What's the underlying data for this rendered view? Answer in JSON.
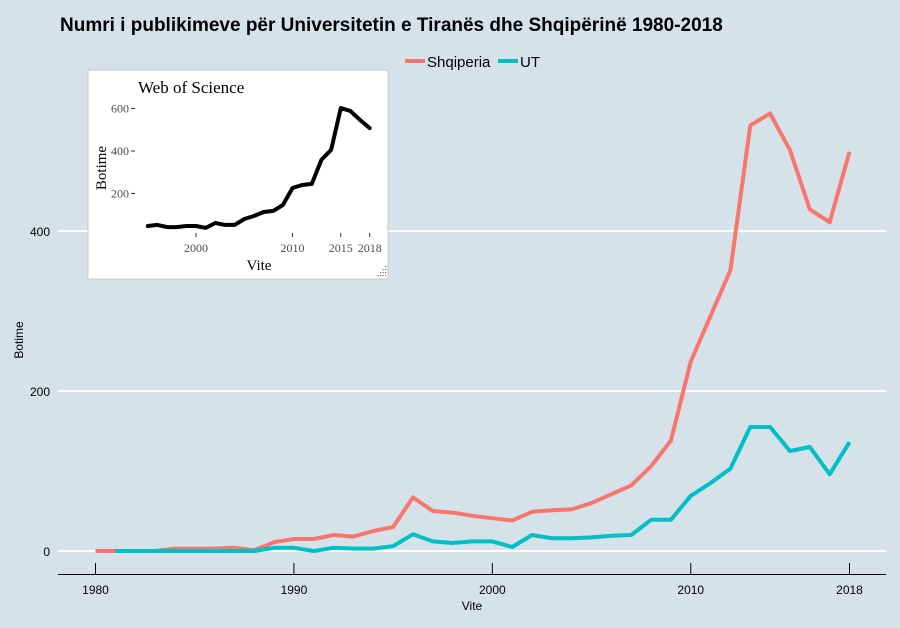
{
  "chart_data": [
    {
      "type": "line",
      "title": "Numri i publikimeve për Universitetin e Tiranës dhe Shqipërinë 1980-2018",
      "xlabel": "Vite",
      "ylabel": "Botime",
      "xlim": [
        1980,
        2018
      ],
      "ylim": [
        0,
        560
      ],
      "x_ticks": [
        1980,
        1990,
        2000,
        2010,
        2018
      ],
      "y_ticks": [
        0,
        200,
        400
      ],
      "grid": "horizontal",
      "legend": {
        "position": "top",
        "entries": [
          "Shqiperia",
          "UT"
        ]
      },
      "series": [
        {
          "name": "Shqiperia",
          "color": "#f8766d",
          "x": [
            1980,
            1981,
            1982,
            1983,
            1984,
            1985,
            1986,
            1987,
            1988,
            1989,
            1990,
            1991,
            1992,
            1993,
            1994,
            1995,
            1996,
            1997,
            1998,
            1999,
            2000,
            2001,
            2002,
            2003,
            2004,
            2005,
            2006,
            2007,
            2008,
            2009,
            2010,
            2011,
            2012,
            2013,
            2014,
            2015,
            2016,
            2017,
            2018
          ],
          "values": [
            0,
            0,
            0,
            0,
            3,
            3,
            3,
            4,
            1,
            11,
            15,
            15,
            20,
            18,
            25,
            30,
            67,
            50,
            48,
            44,
            41,
            38,
            49,
            51,
            52,
            60,
            71,
            82,
            106,
            138,
            237,
            294,
            351,
            532,
            547,
            501,
            427,
            411,
            499
          ]
        },
        {
          "name": "UT",
          "color": "#00bfc4",
          "x": [
            1981,
            1982,
            1983,
            1984,
            1985,
            1986,
            1987,
            1988,
            1989,
            1990,
            1991,
            1992,
            1993,
            1994,
            1995,
            1996,
            1997,
            1998,
            1999,
            2000,
            2001,
            2002,
            2003,
            2004,
            2005,
            2006,
            2007,
            2008,
            2009,
            2010,
            2011,
            2012,
            2013,
            2014,
            2015,
            2016,
            2017,
            2018
          ],
          "values": [
            0,
            0,
            0,
            0,
            0,
            0,
            0,
            0,
            4,
            4,
            0,
            4,
            3,
            3,
            6,
            21,
            12,
            10,
            12,
            12,
            5,
            20,
            16,
            16,
            17,
            19,
            20,
            39,
            39,
            69,
            85,
            103,
            155,
            155,
            125,
            130,
            96,
            136
          ]
        }
      ]
    },
    {
      "type": "line",
      "title": "Web of Science",
      "xlabel": "Vite",
      "ylabel": "Botime",
      "xlim": [
        1995,
        2018
      ],
      "ylim": [
        0,
        620
      ],
      "x_ticks": [
        2000,
        2010,
        2015,
        2018
      ],
      "y_ticks": [
        200,
        400,
        600
      ],
      "grid": "none",
      "series": [
        {
          "name": "Web of Science",
          "color": "#000000",
          "x": [
            1995,
            1996,
            1997,
            1998,
            1999,
            2000,
            2001,
            2002,
            2003,
            2004,
            2005,
            2006,
            2007,
            2008,
            2009,
            2010,
            2011,
            2012,
            2013,
            2014,
            2015,
            2016,
            2017,
            2018
          ],
          "values": [
            47,
            52,
            42,
            42,
            47,
            47,
            38,
            61,
            52,
            52,
            80,
            94,
            113,
            118,
            146,
            226,
            240,
            245,
            358,
            405,
            602,
            588,
            546,
            508
          ]
        }
      ]
    }
  ]
}
